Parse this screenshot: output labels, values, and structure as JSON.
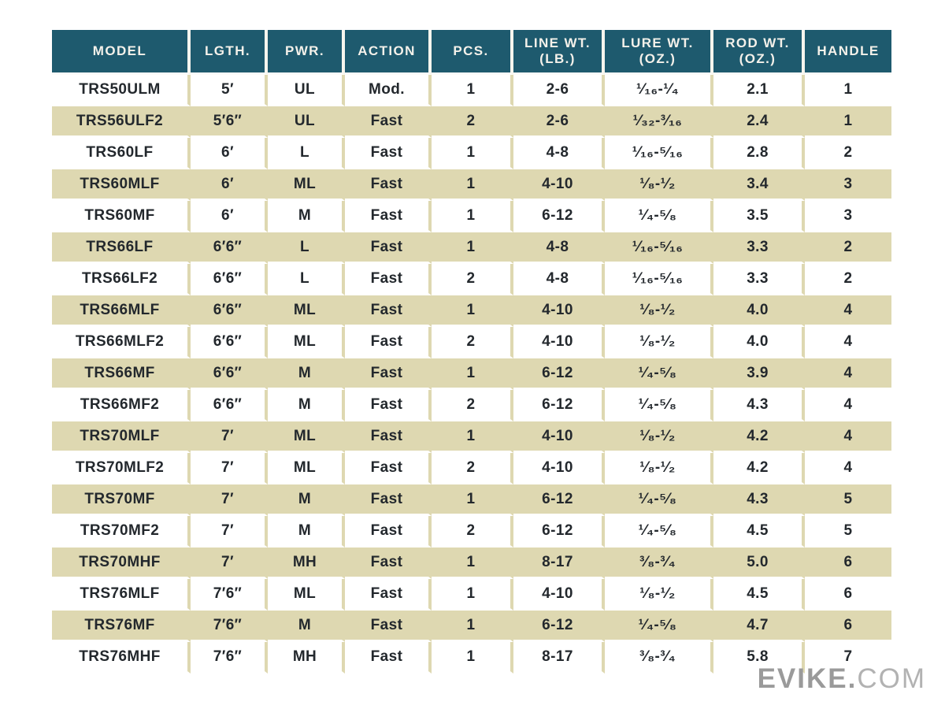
{
  "colors": {
    "header_bg": "#1e5a6e",
    "header_text": "#f4f1ea",
    "row_alt_bg": "#ded8b1",
    "row_bg": "#ffffff",
    "body_text": "#23282d",
    "watermark_bold": "#9a9a9a",
    "watermark_light": "#b2b2b2"
  },
  "table": {
    "columns": [
      {
        "key": "model",
        "label": "MODEL"
      },
      {
        "key": "length",
        "label": "LGTH."
      },
      {
        "key": "power",
        "label": "PWR."
      },
      {
        "key": "action",
        "label": "ACTION"
      },
      {
        "key": "pieces",
        "label": "PCS."
      },
      {
        "key": "line_wt",
        "label": "LINE WT.\n(LB.)"
      },
      {
        "key": "lure_wt",
        "label": "LURE WT.\n(OZ.)"
      },
      {
        "key": "rod_wt",
        "label": "ROD WT.\n(OZ.)"
      },
      {
        "key": "handle",
        "label": "HANDLE"
      }
    ],
    "rows": [
      {
        "model": "TRS50ULM",
        "length": "5′",
        "power": "UL",
        "action": "Mod.",
        "pieces": "1",
        "line_wt": "2-6",
        "lure_wt": "¹⁄₁₆-¹⁄₄",
        "rod_wt": "2.1",
        "handle": "1"
      },
      {
        "model": "TRS56ULF2",
        "length": "5′6″",
        "power": "UL",
        "action": "Fast",
        "pieces": "2",
        "line_wt": "2-6",
        "lure_wt": "¹⁄₃₂-³⁄₁₆",
        "rod_wt": "2.4",
        "handle": "1"
      },
      {
        "model": "TRS60LF",
        "length": "6′",
        "power": "L",
        "action": "Fast",
        "pieces": "1",
        "line_wt": "4-8",
        "lure_wt": "¹⁄₁₆-⁵⁄₁₆",
        "rod_wt": "2.8",
        "handle": "2"
      },
      {
        "model": "TRS60MLF",
        "length": "6′",
        "power": "ML",
        "action": "Fast",
        "pieces": "1",
        "line_wt": "4-10",
        "lure_wt": "¹⁄₈-¹⁄₂",
        "rod_wt": "3.4",
        "handle": "3"
      },
      {
        "model": "TRS60MF",
        "length": "6′",
        "power": "M",
        "action": "Fast",
        "pieces": "1",
        "line_wt": "6-12",
        "lure_wt": "¹⁄₄-⁵⁄₈",
        "rod_wt": "3.5",
        "handle": "3"
      },
      {
        "model": "TRS66LF",
        "length": "6′6″",
        "power": "L",
        "action": "Fast",
        "pieces": "1",
        "line_wt": "4-8",
        "lure_wt": "¹⁄₁₆-⁵⁄₁₆",
        "rod_wt": "3.3",
        "handle": "2"
      },
      {
        "model": "TRS66LF2",
        "length": "6′6″",
        "power": "L",
        "action": "Fast",
        "pieces": "2",
        "line_wt": "4-8",
        "lure_wt": "¹⁄₁₆-⁵⁄₁₆",
        "rod_wt": "3.3",
        "handle": "2"
      },
      {
        "model": "TRS66MLF",
        "length": "6′6″",
        "power": "ML",
        "action": "Fast",
        "pieces": "1",
        "line_wt": "4-10",
        "lure_wt": "¹⁄₈-¹⁄₂",
        "rod_wt": "4.0",
        "handle": "4"
      },
      {
        "model": "TRS66MLF2",
        "length": "6′6″",
        "power": "ML",
        "action": "Fast",
        "pieces": "2",
        "line_wt": "4-10",
        "lure_wt": "¹⁄₈-¹⁄₂",
        "rod_wt": "4.0",
        "handle": "4"
      },
      {
        "model": "TRS66MF",
        "length": "6′6″",
        "power": "M",
        "action": "Fast",
        "pieces": "1",
        "line_wt": "6-12",
        "lure_wt": "¹⁄₄-⁵⁄₈",
        "rod_wt": "3.9",
        "handle": "4"
      },
      {
        "model": "TRS66MF2",
        "length": "6′6″",
        "power": "M",
        "action": "Fast",
        "pieces": "2",
        "line_wt": "6-12",
        "lure_wt": "¹⁄₄-⁵⁄₈",
        "rod_wt": "4.3",
        "handle": "4"
      },
      {
        "model": "TRS70MLF",
        "length": "7′",
        "power": "ML",
        "action": "Fast",
        "pieces": "1",
        "line_wt": "4-10",
        "lure_wt": "¹⁄₈-¹⁄₂",
        "rod_wt": "4.2",
        "handle": "4"
      },
      {
        "model": "TRS70MLF2",
        "length": "7′",
        "power": "ML",
        "action": "Fast",
        "pieces": "2",
        "line_wt": "4-10",
        "lure_wt": "¹⁄₈-¹⁄₂",
        "rod_wt": "4.2",
        "handle": "4"
      },
      {
        "model": "TRS70MF",
        "length": "7′",
        "power": "M",
        "action": "Fast",
        "pieces": "1",
        "line_wt": "6-12",
        "lure_wt": "¹⁄₄-⁵⁄₈",
        "rod_wt": "4.3",
        "handle": "5"
      },
      {
        "model": "TRS70MF2",
        "length": "7′",
        "power": "M",
        "action": "Fast",
        "pieces": "2",
        "line_wt": "6-12",
        "lure_wt": "¹⁄₄-⁵⁄₈",
        "rod_wt": "4.5",
        "handle": "5"
      },
      {
        "model": "TRS70MHF",
        "length": "7′",
        "power": "MH",
        "action": "Fast",
        "pieces": "1",
        "line_wt": "8-17",
        "lure_wt": "³⁄₈-³⁄₄",
        "rod_wt": "5.0",
        "handle": "6"
      },
      {
        "model": "TRS76MLF",
        "length": "7′6″",
        "power": "ML",
        "action": "Fast",
        "pieces": "1",
        "line_wt": "4-10",
        "lure_wt": "¹⁄₈-¹⁄₂",
        "rod_wt": "4.5",
        "handle": "6"
      },
      {
        "model": "TRS76MF",
        "length": "7′6″",
        "power": "M",
        "action": "Fast",
        "pieces": "1",
        "line_wt": "6-12",
        "lure_wt": "¹⁄₄-⁵⁄₈",
        "rod_wt": "4.7",
        "handle": "6"
      },
      {
        "model": "TRS76MHF",
        "length": "7′6″",
        "power": "MH",
        "action": "Fast",
        "pieces": "1",
        "line_wt": "8-17",
        "lure_wt": "³⁄₈-³⁄₄",
        "rod_wt": "5.8",
        "handle": "7"
      }
    ]
  },
  "watermark": {
    "brand": "EVIKE.",
    "tld": "COM"
  }
}
